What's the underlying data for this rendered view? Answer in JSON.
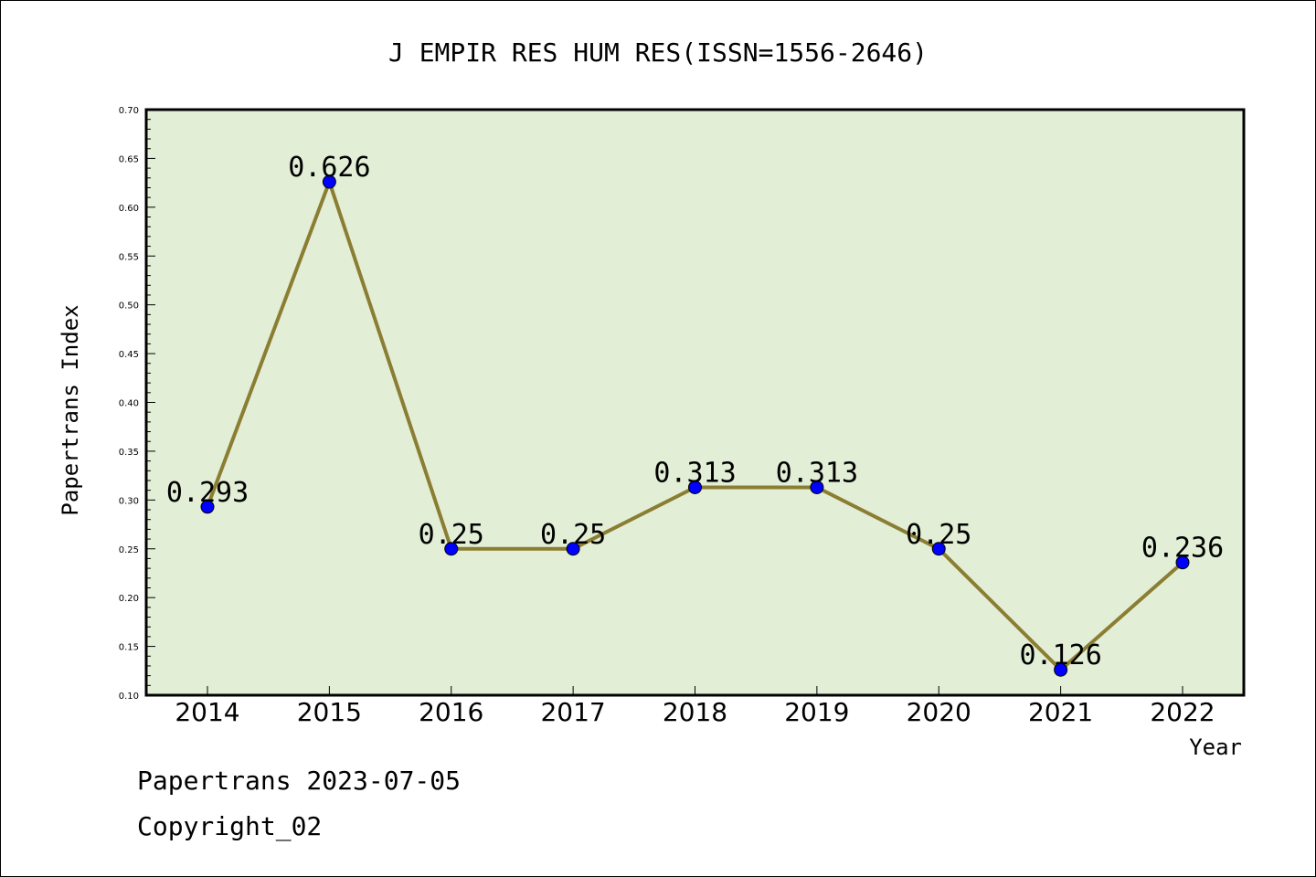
{
  "chart_data": {
    "type": "line",
    "title": "J EMPIR RES HUM RES(ISSN=1556-2646)",
    "xlabel": "Year",
    "ylabel": "Papertrans Index",
    "categories": [
      "2014",
      "2015",
      "2016",
      "2017",
      "2018",
      "2019",
      "2020",
      "2021",
      "2022"
    ],
    "series": [
      {
        "values": [
          0.293,
          0.626,
          0.25,
          0.25,
          0.313,
          0.313,
          0.25,
          0.126,
          0.236
        ],
        "labels": [
          "0.293",
          "0.626",
          "0.25",
          "0.25",
          "0.313",
          "0.313",
          "0.25",
          "0.126",
          "0.236"
        ]
      }
    ],
    "ylim": [
      0.1,
      0.7
    ],
    "yticks": [
      "0.10",
      "0.15",
      "0.20",
      "0.25",
      "0.30",
      "0.35",
      "0.40",
      "0.45",
      "0.50",
      "0.55",
      "0.60",
      "0.65",
      "0.70"
    ],
    "grid": false,
    "legend": "none",
    "colors": {
      "plot_background": "#e2efd6",
      "line": "#8b7d32",
      "marker": "#0000ff"
    }
  },
  "footer": {
    "line1": "Papertrans 2023-07-05",
    "line2": "Copyright_02"
  }
}
